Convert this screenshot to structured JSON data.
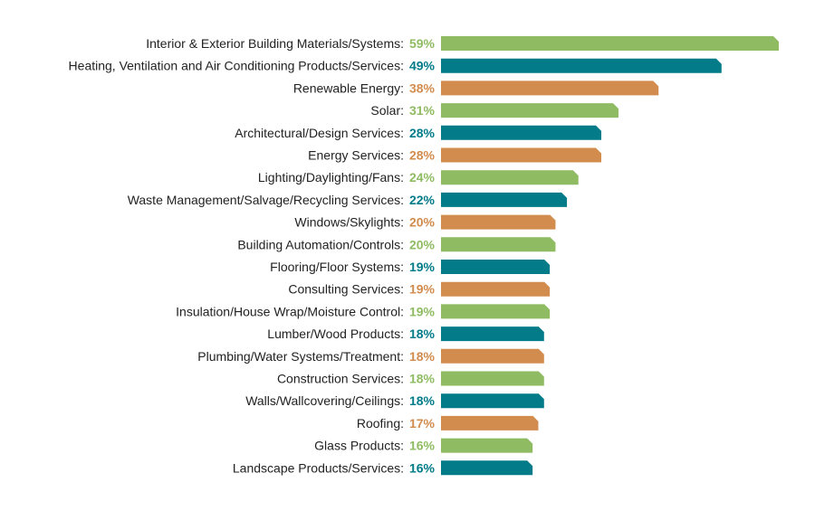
{
  "chart_data": {
    "type": "bar",
    "orientation": "horizontal",
    "title": "",
    "xlabel": "",
    "ylabel": "",
    "unit": "%",
    "xlim": [
      0,
      59
    ],
    "categories": [
      "Interior & Exterior Building Materials/Systems",
      "Heating, Ventilation and Air Conditioning Products/Services",
      "Renewable Energy",
      "Solar",
      "Architectural/Design Services",
      "Energy Services",
      "Lighting/Daylighting/Fans",
      "Waste Management/Salvage/Recycling Services",
      "Windows/Skylights",
      "Building Automation/Controls",
      "Flooring/Floor Systems",
      "Consulting Services",
      "Insulation/House Wrap/Moisture Control",
      "Lumber/Wood Products",
      "Plumbing/Water Systems/Treatment",
      "Construction Services",
      "Walls/Wallcovering/Ceilings",
      "Roofing",
      "Glass Products",
      "Landscape Products/Services"
    ],
    "values": [
      59,
      49,
      38,
      31,
      28,
      28,
      24,
      22,
      20,
      20,
      19,
      19,
      19,
      18,
      18,
      18,
      18,
      17,
      16,
      16
    ],
    "palette": [
      "#8fbc62",
      "#037b89",
      "#d28c4e"
    ],
    "color_sequence": "green, teal, orange repeating from top"
  }
}
